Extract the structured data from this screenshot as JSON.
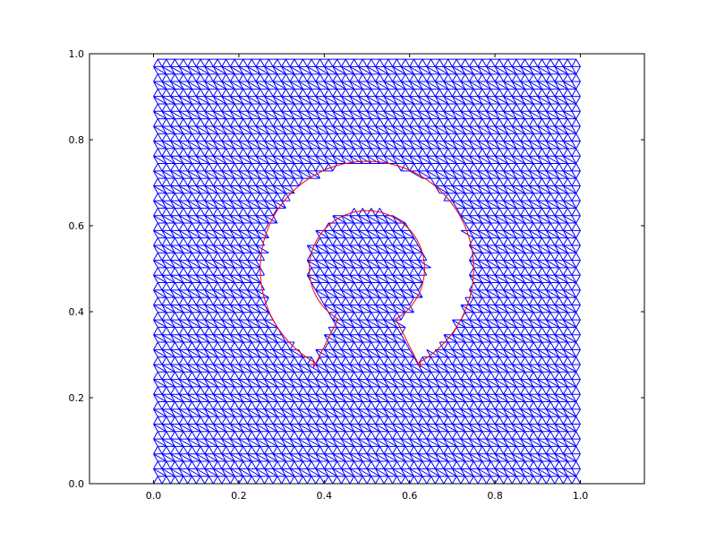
{
  "chart_data": {
    "type": "mesh",
    "title": "",
    "xlabel": "",
    "ylabel": "",
    "xlim": [
      -0.15,
      1.15
    ],
    "ylim": [
      0.0,
      1.0
    ],
    "grid": false,
    "x_ticks": [
      "0.0",
      "0.2",
      "0.4",
      "0.6",
      "0.8",
      "1.0"
    ],
    "y_ticks": [
      "0.0",
      "0.2",
      "0.4",
      "0.6",
      "0.8",
      "1.0"
    ],
    "x_tick_values": [
      0.0,
      0.2,
      0.4,
      0.6,
      0.8,
      1.0
    ],
    "y_tick_values": [
      0.0,
      0.2,
      0.4,
      0.6,
      0.8,
      1.0
    ],
    "mesh": {
      "domain": {
        "x": [
          0.0,
          1.0
        ],
        "y": [
          0.0,
          0.99
        ]
      },
      "element": "triangle",
      "edge_length": 0.02,
      "color": "#0000ff"
    },
    "hole": {
      "shape": "open-ring",
      "center": [
        0.5,
        0.5
      ],
      "outer_radius": 0.25,
      "inner_radius": 0.135,
      "gap_angles_deg": [
        -120,
        -60
      ],
      "gap_tip_y": 0.27,
      "boundary_color": "#ff0000"
    }
  }
}
